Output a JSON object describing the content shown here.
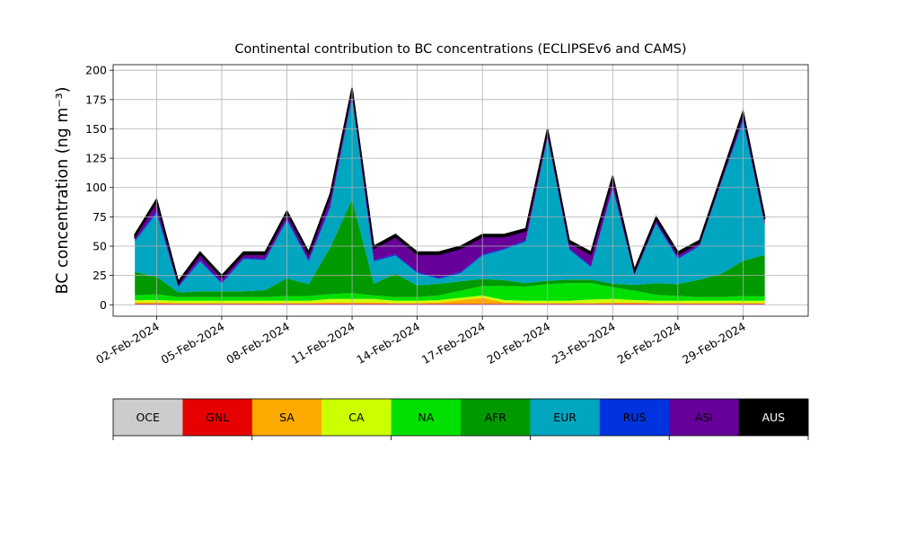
{
  "chart_data": {
    "type": "stacked_area",
    "title": "Continental contribution to BC concentrations (ECLIPSEv6 and CAMS)",
    "y_label": "BC concentration (ng m⁻³)",
    "x": [
      "2024-02-01",
      "2024-02-02",
      "2024-02-03",
      "2024-02-04",
      "2024-02-05",
      "2024-02-06",
      "2024-02-07",
      "2024-02-08",
      "2024-02-09",
      "2024-02-10",
      "2024-02-11",
      "2024-02-12",
      "2024-02-13",
      "2024-02-14",
      "2024-02-15",
      "2024-02-16",
      "2024-02-17",
      "2024-02-18",
      "2024-02-19",
      "2024-02-20",
      "2024-02-21",
      "2024-02-22",
      "2024-02-23",
      "2024-02-24",
      "2024-02-25",
      "2024-02-26",
      "2024-02-27",
      "2024-02-28",
      "2024-02-29",
      "2024-03-01"
    ],
    "xlim": [
      "2024-01-31",
      "2024-03-03"
    ],
    "xticks": [
      {
        "value": "2024-02-02",
        "label": "02-Feb-2024"
      },
      {
        "value": "2024-02-05",
        "label": "05-Feb-2024"
      },
      {
        "value": "2024-02-08",
        "label": "08-Feb-2024"
      },
      {
        "value": "2024-02-11",
        "label": "11-Feb-2024"
      },
      {
        "value": "2024-02-14",
        "label": "14-Feb-2024"
      },
      {
        "value": "2024-02-17",
        "label": "17-Feb-2024"
      },
      {
        "value": "2024-02-20",
        "label": "20-Feb-2024"
      },
      {
        "value": "2024-02-23",
        "label": "23-Feb-2024"
      },
      {
        "value": "2024-02-26",
        "label": "26-Feb-2024"
      },
      {
        "value": "2024-02-29",
        "label": "29-Feb-2024"
      }
    ],
    "ylim": [
      -9.75,
      204.75
    ],
    "yticks": [
      0,
      25,
      50,
      75,
      100,
      125,
      150,
      175,
      200
    ],
    "grid": true,
    "series": [
      {
        "name": "OCE",
        "color": "#cccccc",
        "values": [
          0.5,
          0.5,
          0.5,
          0.5,
          0.5,
          0.5,
          0.5,
          0.5,
          0.5,
          0.5,
          0.5,
          0.5,
          0.5,
          0.5,
          0.5,
          0.5,
          0.5,
          0.5,
          0.5,
          0.5,
          0.5,
          0.5,
          0.5,
          0.5,
          0.5,
          0.5,
          0.5,
          0.5,
          0.5,
          0.5
        ]
      },
      {
        "name": "GNL",
        "color": "#e60000",
        "values": [
          0.5,
          0.5,
          0.5,
          0.5,
          0.5,
          0.5,
          0.5,
          0.5,
          0.5,
          0.5,
          0.5,
          0.5,
          0.5,
          0.5,
          0.5,
          0.5,
          0.5,
          0.5,
          0.5,
          0.5,
          0.5,
          0.5,
          0.5,
          0.5,
          0.5,
          0.5,
          0.5,
          0.5,
          0.5,
          0.5
        ]
      },
      {
        "name": "SA",
        "color": "#ffaa00",
        "values": [
          1,
          1,
          0.5,
          0.5,
          0.5,
          0.5,
          0.5,
          0.5,
          0.5,
          1,
          1,
          1,
          0.5,
          0.5,
          1,
          3,
          5,
          1,
          0.5,
          0.5,
          0.5,
          0.5,
          1,
          1,
          0.5,
          0.5,
          0.5,
          0.5,
          0.5,
          0.5
        ]
      },
      {
        "name": "CA",
        "color": "#ccff00",
        "values": [
          2,
          2,
          2,
          2,
          2,
          2,
          2,
          2,
          2,
          3,
          3,
          3,
          2,
          2,
          2,
          2,
          2,
          2,
          2,
          2,
          2,
          3,
          3,
          2,
          2,
          2,
          2,
          2,
          2,
          2
        ]
      },
      {
        "name": "NA",
        "color": "#00e000",
        "values": [
          4,
          5,
          3,
          3,
          3,
          3,
          3,
          4,
          4,
          4,
          5,
          3,
          3,
          3,
          4,
          6,
          8,
          12,
          12,
          14,
          15,
          14,
          10,
          8,
          5,
          4,
          3,
          3,
          4,
          4
        ]
      },
      {
        "name": "AFR",
        "color": "#009900",
        "values": [
          20,
          15,
          4,
          5,
          5,
          5,
          6,
          15,
          10,
          40,
          80,
          10,
          20,
          10,
          10,
          8,
          6,
          5,
          3,
          3,
          3,
          3,
          3,
          5,
          10,
          10,
          15,
          20,
          30,
          35
        ]
      },
      {
        "name": "EUR",
        "color": "#00a5bf",
        "values": [
          26,
          54,
          4.5,
          25.5,
          6.5,
          27.5,
          25.5,
          49.5,
          19.5,
          34,
          86,
          19,
          15.5,
          10.5,
          4,
          7,
          20,
          26,
          35.5,
          121.5,
          25.5,
          10.5,
          81,
          8,
          50.5,
          21.5,
          28.5,
          77.5,
          118.5,
          24.5
        ]
      },
      {
        "name": "RUS",
        "color": "#0033dd",
        "values": [
          1,
          2,
          1,
          1,
          1,
          1,
          1,
          1,
          1,
          2,
          2,
          1,
          1,
          1,
          1,
          1,
          1,
          1,
          1,
          1,
          1,
          1,
          1,
          1,
          1,
          1,
          1,
          1,
          2,
          1
        ]
      },
      {
        "name": "ASI",
        "color": "#660099",
        "values": [
          3,
          8,
          2,
          5,
          4,
          3,
          4,
          5,
          5,
          8,
          5,
          10,
          15,
          15,
          20,
          20,
          15,
          10,
          8,
          5,
          5,
          10,
          8,
          2,
          3,
          3,
          2,
          3,
          5,
          5
        ]
      },
      {
        "name": "AUS",
        "color": "#000000",
        "values": [
          2,
          2,
          2,
          2,
          2,
          2,
          2,
          2,
          2,
          2,
          2,
          2,
          2,
          2,
          2,
          2,
          2,
          2,
          2,
          2,
          2,
          2,
          2,
          2,
          2,
          2,
          2,
          2,
          2,
          2
        ]
      }
    ]
  }
}
